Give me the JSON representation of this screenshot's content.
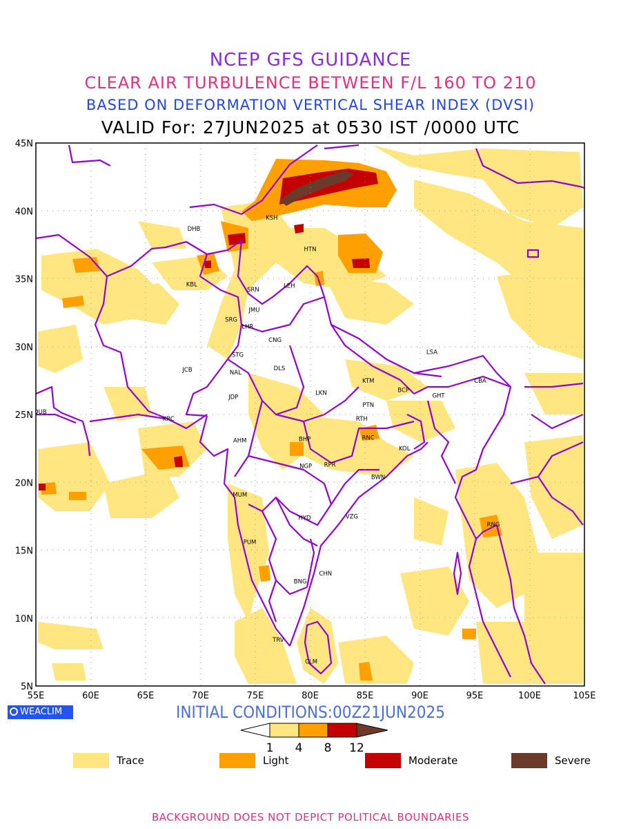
{
  "header": {
    "line1": "NCEP GFS GUIDANCE",
    "line2": "CLEAR AIR TURBULENCE BETWEEN F/L 160 TO 210",
    "line3": "BASED ON DEFORMATION VERTICAL SHEAR INDEX (DVSI)",
    "line4": "VALID For: 27JUN2025 at 0530 IST /0000 UTC"
  },
  "map": {
    "lat_labels": [
      "45N",
      "40N",
      "35N",
      "30N",
      "25N",
      "20N",
      "15N",
      "10N",
      "5N"
    ],
    "lon_labels": [
      "55E",
      "60E",
      "65E",
      "70E",
      "75E",
      "80E",
      "85E",
      "90E",
      "95E",
      "100E",
      "105E"
    ],
    "cities": [
      {
        "code": "KSH",
        "lon": 76.5,
        "lat": 39.5
      },
      {
        "code": "DHB",
        "lon": 69.4,
        "lat": 38.7
      },
      {
        "code": "HTN",
        "lon": 80.0,
        "lat": 37.2
      },
      {
        "code": "KBL",
        "lon": 69.2,
        "lat": 34.6
      },
      {
        "code": "SRN",
        "lon": 74.8,
        "lat": 34.2
      },
      {
        "code": "LEH",
        "lon": 78.1,
        "lat": 34.5
      },
      {
        "code": "JMU",
        "lon": 74.9,
        "lat": 32.7
      },
      {
        "code": "SRG",
        "lon": 72.8,
        "lat": 32.0
      },
      {
        "code": "LHR",
        "lon": 74.3,
        "lat": 31.5
      },
      {
        "code": "CNG",
        "lon": 76.8,
        "lat": 30.5
      },
      {
        "code": "LSA",
        "lon": 91.1,
        "lat": 29.6
      },
      {
        "code": "STG",
        "lon": 73.4,
        "lat": 29.4
      },
      {
        "code": "JCB",
        "lon": 68.8,
        "lat": 28.3
      },
      {
        "code": "DLS",
        "lon": 77.2,
        "lat": 28.4
      },
      {
        "code": "NAL",
        "lon": 73.2,
        "lat": 28.1
      },
      {
        "code": "KTM",
        "lon": 85.3,
        "lat": 27.5
      },
      {
        "code": "CBA",
        "lon": 95.5,
        "lat": 27.5
      },
      {
        "code": "BCP",
        "lon": 88.5,
        "lat": 26.8
      },
      {
        "code": "LKN",
        "lon": 81.0,
        "lat": 26.6
      },
      {
        "code": "GHT",
        "lon": 91.7,
        "lat": 26.4
      },
      {
        "code": "JDP",
        "lon": 73.0,
        "lat": 26.3
      },
      {
        "code": "PTN",
        "lon": 85.3,
        "lat": 25.7
      },
      {
        "code": "DUB",
        "lon": 55.4,
        "lat": 25.2
      },
      {
        "code": "RTH",
        "lon": 84.7,
        "lat": 24.7
      },
      {
        "code": "KRC",
        "lon": 67.1,
        "lat": 24.7
      },
      {
        "code": "BHP",
        "lon": 79.5,
        "lat": 23.2
      },
      {
        "code": "AHM",
        "lon": 73.6,
        "lat": 23.1
      },
      {
        "code": "RNC",
        "lon": 85.3,
        "lat": 23.3
      },
      {
        "code": "KOL",
        "lon": 88.6,
        "lat": 22.5
      },
      {
        "code": "NGP",
        "lon": 79.6,
        "lat": 21.2
      },
      {
        "code": "RPR",
        "lon": 81.8,
        "lat": 21.3
      },
      {
        "code": "BWN",
        "lon": 86.2,
        "lat": 20.4
      },
      {
        "code": "MUM",
        "lon": 73.6,
        "lat": 19.1
      },
      {
        "code": "HYD",
        "lon": 79.5,
        "lat": 17.4
      },
      {
        "code": "VZG",
        "lon": 83.8,
        "lat": 17.5
      },
      {
        "code": "RNG",
        "lon": 96.7,
        "lat": 16.9
      },
      {
        "code": "PUM",
        "lon": 74.5,
        "lat": 15.6
      },
      {
        "code": "CHN",
        "lon": 81.4,
        "lat": 13.3
      },
      {
        "code": "BNG",
        "lon": 79.1,
        "lat": 12.7
      },
      {
        "code": "TRV",
        "lon": 77.1,
        "lat": 8.4
      },
      {
        "code": "CLM",
        "lon": 80.1,
        "lat": 6.8
      }
    ]
  },
  "branding": {
    "badge": "WEACLIM"
  },
  "initial_conditions": "INITIAL CONDITIONS:00Z21JUN2025",
  "colorbar": {
    "ticks": [
      "1",
      "4",
      "8",
      "12"
    ]
  },
  "legend": [
    {
      "label": "Trace",
      "color": "#ffe680"
    },
    {
      "label": "Light",
      "color": "#ffa000"
    },
    {
      "label": "Moderate",
      "color": "#c40000"
    },
    {
      "label": "Severe",
      "color": "#6b3a2a"
    }
  ],
  "colors": {
    "trace": "#ffe680",
    "light": "#ffa000",
    "moderate": "#c40000",
    "severe": "#6b3a2a",
    "border": "#9400d3"
  },
  "footer": "BACKGROUND DOES NOT DEPICT POLITICAL BOUNDARIES"
}
